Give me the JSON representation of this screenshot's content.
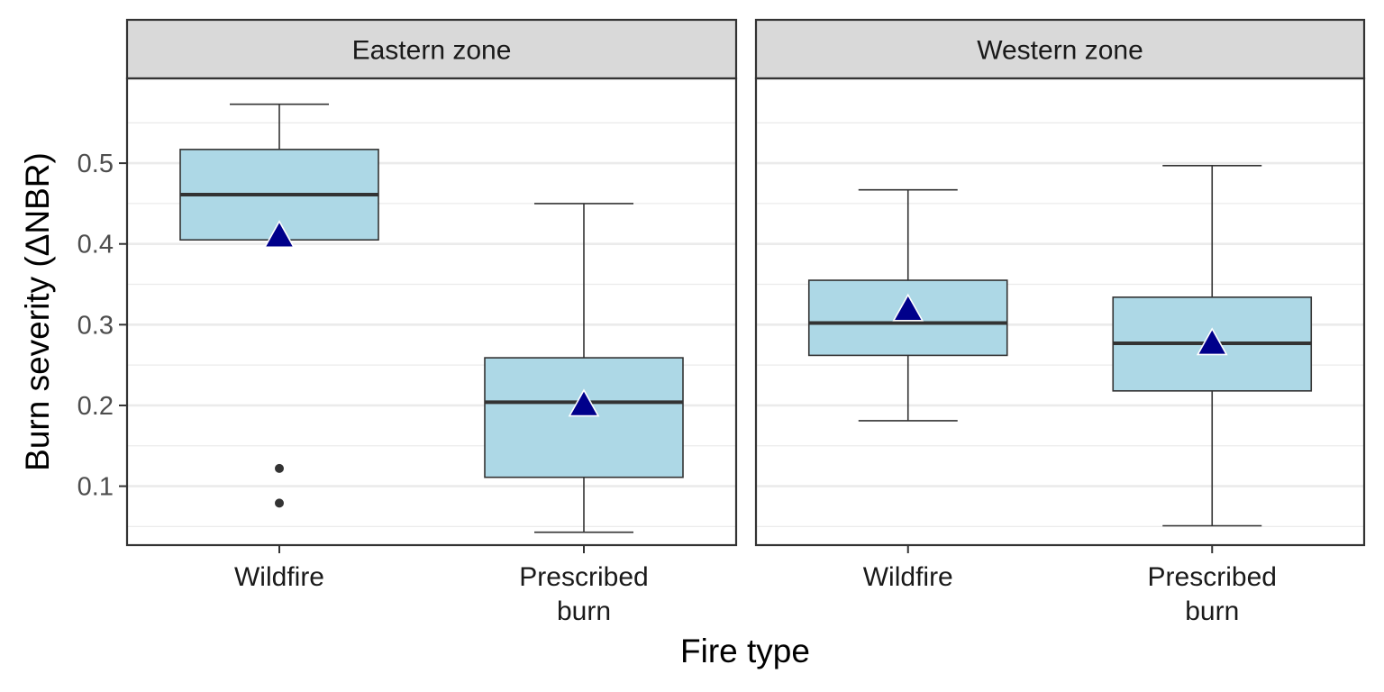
{
  "chart_data": {
    "type": "boxplot",
    "xlabel": "Fire type",
    "ylabel": "Burn severity (ΔNBR)",
    "ylim": [
      0.027,
      0.605
    ],
    "y_ticks": [
      0.1,
      0.2,
      0.3,
      0.4,
      0.5
    ],
    "y_tick_labels": [
      "0.1",
      "0.2",
      "0.3",
      "0.4",
      "0.5"
    ],
    "grid": true,
    "colors": {
      "box_fill": "#ADD8E6",
      "box_outline": "#333333",
      "mean_marker": "#00008B",
      "outlier": "#333333",
      "strip_fill": "#D9D9D9",
      "panel_border": "#333333",
      "grid": "#EBEBEB"
    },
    "panels": [
      {
        "facet": "Eastern zone",
        "boxes": [
          {
            "category": [
              "Wildfire"
            ],
            "whisker_low": 0.405,
            "q1": 0.405,
            "median": 0.461,
            "q3": 0.517,
            "whisker_high": 0.573,
            "mean": 0.41,
            "outliers": [
              0.122,
              0.079
            ]
          },
          {
            "category": [
              "Prescribed",
              "burn"
            ],
            "whisker_low": 0.043,
            "q1": 0.111,
            "median": 0.204,
            "q3": 0.259,
            "whisker_high": 0.45,
            "mean": 0.201,
            "outliers": []
          }
        ]
      },
      {
        "facet": "Western zone",
        "boxes": [
          {
            "category": [
              "Wildfire"
            ],
            "whisker_low": 0.181,
            "q1": 0.262,
            "median": 0.302,
            "q3": 0.355,
            "whisker_high": 0.467,
            "mean": 0.319,
            "outliers": []
          },
          {
            "category": [
              "Prescribed",
              "burn"
            ],
            "whisker_low": 0.051,
            "q1": 0.218,
            "median": 0.277,
            "q3": 0.334,
            "whisker_high": 0.497,
            "mean": 0.277,
            "outliers": []
          }
        ]
      }
    ]
  }
}
